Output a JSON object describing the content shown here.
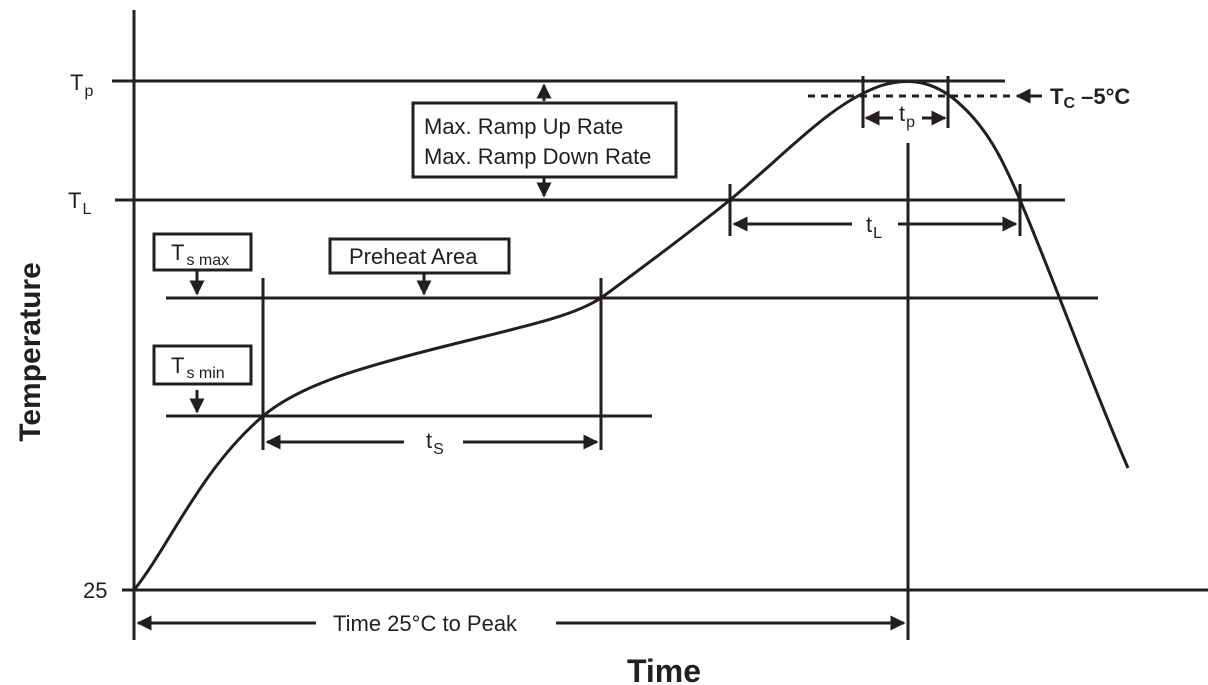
{
  "axes": {
    "x_label": "Time",
    "y_label": "Temperature",
    "y_ticks": {
      "tp_main": "T",
      "tp_sub": "p",
      "tl_main": "T",
      "tl_sub": "L",
      "base": "25"
    }
  },
  "labels": {
    "ramp_line1": "Max. Ramp Up Rate",
    "ramp_line2": "Max. Ramp Down Rate",
    "tsmax_main": "T",
    "tsmax_sub": "s max",
    "tsmin_main": "T",
    "tsmin_sub": "s min",
    "preheat": "Preheat Area",
    "tc_main": "T",
    "tc_sub": "C",
    "tc_suffix": " –5°C",
    "tp_main": "t",
    "tp_sub": "p",
    "tl_main": "t",
    "tl_sub": "L",
    "ts_main": "t",
    "ts_sub": "S",
    "time_to_peak": "Time 25°C to Peak"
  },
  "colors": {
    "ink": "#231f20",
    "background": "#ffffff"
  }
}
